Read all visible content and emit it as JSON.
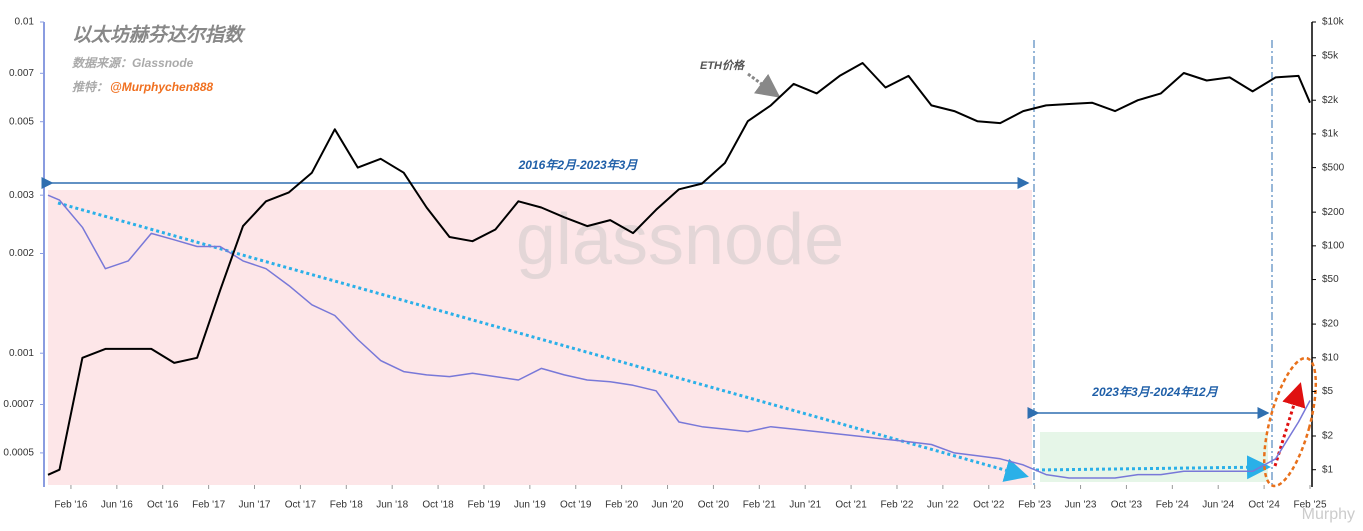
{
  "chart_data": {
    "type": "line",
    "title": "以太坊赫芬达尔指数",
    "source": "数据来源：Glassnode",
    "author_prefix": "推特：",
    "author": "@Murphychen888",
    "watermark": "glassnode",
    "corner_mark": "Murphy",
    "annotations": [
      "2016年2月-2023年3月",
      "2023年3月-2024年12月"
    ],
    "yscale": "log",
    "y2scale": "log",
    "x": [
      "2015-12",
      "2016-01",
      "2016-03",
      "2016-05",
      "2016-07",
      "2016-09",
      "2016-11",
      "2017-01",
      "2017-03",
      "2017-05",
      "2017-07",
      "2017-09",
      "2017-11",
      "2018-01",
      "2018-03",
      "2018-05",
      "2018-07",
      "2018-09",
      "2018-11",
      "2019-01",
      "2019-03",
      "2019-05",
      "2019-07",
      "2019-09",
      "2019-11",
      "2020-01",
      "2020-03",
      "2020-05",
      "2020-07",
      "2020-09",
      "2020-11",
      "2021-01",
      "2021-03",
      "2021-05",
      "2021-07",
      "2021-09",
      "2021-11",
      "2022-01",
      "2022-03",
      "2022-05",
      "2022-07",
      "2022-09",
      "2022-11",
      "2023-01",
      "2023-03",
      "2023-05",
      "2023-07",
      "2023-09",
      "2023-11",
      "2024-01",
      "2024-03",
      "2024-05",
      "2024-07",
      "2024-09",
      "2024-11",
      "2025-01",
      "2025-02"
    ],
    "series": [
      {
        "color": "#7878d8",
        "axis": "y",
        "values": [
          0.003,
          0.0029,
          0.0024,
          0.0018,
          0.0019,
          0.0023,
          0.0022,
          0.0021,
          0.0021,
          0.0019,
          0.0018,
          0.0016,
          0.0014,
          0.0013,
          0.0011,
          0.00095,
          0.00088,
          0.00086,
          0.00085,
          0.00087,
          0.00085,
          0.00083,
          0.0009,
          0.00086,
          0.00083,
          0.00082,
          0.0008,
          0.00077,
          0.00062,
          0.0006,
          0.00059,
          0.00058,
          0.0006,
          0.00059,
          0.00058,
          0.00057,
          0.00056,
          0.00055,
          0.00054,
          0.00053,
          0.0005,
          0.00049,
          0.00048,
          0.00046,
          0.00043,
          0.00042,
          0.00042,
          0.00042,
          0.00043,
          0.00043,
          0.00044,
          0.00044,
          0.00044,
          0.00044,
          0.00048,
          0.00062,
          0.00072
        ]
      },
      {
        "name": "ETH价格",
        "color": "#000000",
        "axis": "y2",
        "values": [
          0.9,
          1,
          10,
          12,
          12,
          12,
          9,
          10,
          40,
          150,
          250,
          300,
          450,
          1100,
          500,
          600,
          450,
          220,
          120,
          110,
          140,
          250,
          220,
          180,
          150,
          170,
          130,
          210,
          320,
          360,
          550,
          1300,
          1800,
          2800,
          2300,
          3300,
          4300,
          2600,
          3300,
          1800,
          1600,
          1300,
          1250,
          1600,
          1800,
          1850,
          1900,
          1600,
          2000,
          2300,
          3500,
          3000,
          3200,
          2400,
          3200,
          3300,
          1900
        ]
      }
    ],
    "xlim": [
      "2015-12",
      "2025-02"
    ],
    "xticks": [
      {
        "value": "2016-02",
        "label": "Feb '16"
      },
      {
        "value": "2016-06",
        "label": "Jun '16"
      },
      {
        "value": "2016-10",
        "label": "Oct '16"
      },
      {
        "value": "2017-02",
        "label": "Feb '17"
      },
      {
        "value": "2017-06",
        "label": "Jun '17"
      },
      {
        "value": "2017-10",
        "label": "Oct '17"
      },
      {
        "value": "2018-02",
        "label": "Feb '18"
      },
      {
        "value": "2018-06",
        "label": "Jun '18"
      },
      {
        "value": "2018-10",
        "label": "Oct '18"
      },
      {
        "value": "2019-02",
        "label": "Feb '19"
      },
      {
        "value": "2019-06",
        "label": "Jun '19"
      },
      {
        "value": "2019-10",
        "label": "Oct '19"
      },
      {
        "value": "2020-02",
        "label": "Feb '20"
      },
      {
        "value": "2020-06",
        "label": "Jun '20"
      },
      {
        "value": "2020-10",
        "label": "Oct '20"
      },
      {
        "value": "2021-02",
        "label": "Feb '21"
      },
      {
        "value": "2021-06",
        "label": "Jun '21"
      },
      {
        "value": "2021-10",
        "label": "Oct '21"
      },
      {
        "value": "2022-02",
        "label": "Feb '22"
      },
      {
        "value": "2022-06",
        "label": "Jun '22"
      },
      {
        "value": "2022-10",
        "label": "Oct '22"
      },
      {
        "value": "2023-02",
        "label": "Feb '23"
      },
      {
        "value": "2023-06",
        "label": "Jun '23"
      },
      {
        "value": "2023-10",
        "label": "Oct '23"
      },
      {
        "value": "2024-02",
        "label": "Feb '24"
      },
      {
        "value": "2024-06",
        "label": "Jun '24"
      },
      {
        "value": "2024-10",
        "label": "Oct '24"
      },
      {
        "value": "2025-02",
        "label": "Feb '25"
      }
    ],
    "ylim": [
      0.0004,
      0.01
    ],
    "yticks": [
      0.01,
      0.007,
      0.005,
      0.003,
      0.002,
      0.001,
      0.0007,
      0.0005
    ],
    "y2lim": [
      0.73,
      10000
    ],
    "y2ticks": [
      {
        "value": 10000,
        "label": "$10k"
      },
      {
        "value": 5000,
        "label": "$5k"
      },
      {
        "value": 2000,
        "label": "$2k"
      },
      {
        "value": 1000,
        "label": "$1k"
      },
      {
        "value": 500,
        "label": "$500"
      },
      {
        "value": 200,
        "label": "$200"
      },
      {
        "value": 100,
        "label": "$100"
      },
      {
        "value": 50,
        "label": "$50"
      },
      {
        "value": 20,
        "label": "$20"
      },
      {
        "value": 10,
        "label": "$10"
      },
      {
        "value": 5,
        "label": "$5"
      },
      {
        "value": 2,
        "label": "$2"
      },
      {
        "value": 1,
        "label": "$1"
      }
    ]
  }
}
